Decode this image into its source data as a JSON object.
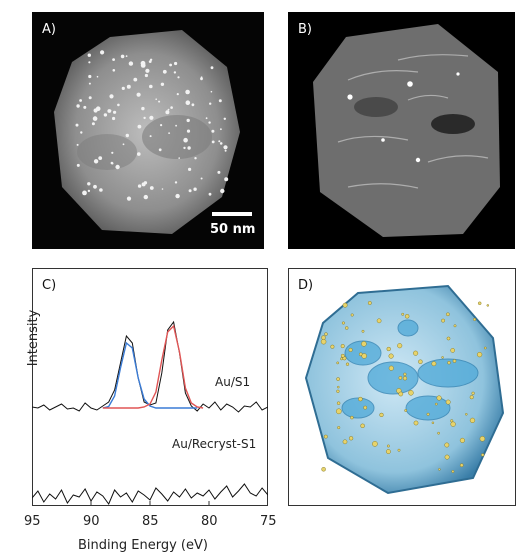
{
  "panels": {
    "a": {
      "label": "A)"
    },
    "b": {
      "label": "B)"
    },
    "c": {
      "label": "C)"
    },
    "d": {
      "label": "D)"
    }
  },
  "scale_bar": {
    "label": "50 nm"
  },
  "chart_data": {
    "type": "line",
    "xlabel": "Binding Energy (eV)",
    "ylabel": "Intensity",
    "x_reversed": true,
    "xlim": [
      95,
      75
    ],
    "xticks": [
      95,
      90,
      85,
      80,
      75
    ],
    "series": [
      {
        "name": "Au/S1",
        "color": "#111111",
        "x": [
          95,
          94.5,
          94,
          93.5,
          93,
          92.5,
          92,
          91.5,
          91,
          90.5,
          90,
          89.5,
          89,
          88.5,
          88,
          87.5,
          87,
          86.5,
          86,
          85.5,
          85,
          84.5,
          84,
          83.5,
          83,
          82.5,
          82,
          81.5,
          81,
          80.5,
          80,
          79.5,
          79,
          78.5,
          78,
          77.5,
          77,
          76.5,
          76,
          75.5,
          75
        ],
        "y": [
          0.1,
          0.0,
          0.3,
          -0.2,
          0.1,
          0.4,
          -0.1,
          0.0,
          -0.3,
          0.5,
          0.0,
          -0.2,
          0.2,
          0.6,
          1.8,
          4.5,
          7.2,
          6.5,
          3.0,
          0.6,
          0.3,
          0.5,
          3.5,
          7.8,
          8.6,
          5.5,
          1.5,
          0.2,
          -0.3,
          0.4,
          0.0,
          0.6,
          -0.2,
          0.4,
          0.1,
          -0.4,
          0.2,
          0.1,
          0.6,
          -0.2,
          0.1
        ]
      },
      {
        "name": "",
        "color": "#3a7bd5",
        "x": [
          89,
          88.5,
          88,
          87.5,
          87,
          86.5,
          86,
          85.5,
          85,
          84.5,
          84,
          83,
          82,
          81
        ],
        "y": [
          0.0,
          0.15,
          1.2,
          4.0,
          6.5,
          6.0,
          3.0,
          0.9,
          0.2,
          0.0,
          0.0,
          0.0,
          0.0,
          0.0
        ]
      },
      {
        "name": "",
        "color": "#e05555",
        "x": [
          89,
          88,
          87,
          86,
          85.5,
          85,
          84.5,
          84,
          83.5,
          83,
          82.5,
          82,
          81.5,
          81,
          80.5
        ],
        "y": [
          0.0,
          0.0,
          0.0,
          0.0,
          0.1,
          0.4,
          1.6,
          4.8,
          7.6,
          8.2,
          5.6,
          2.0,
          0.5,
          0.1,
          0.0
        ]
      },
      {
        "name": "Au/Recryst-S1",
        "color": "#111111",
        "x": [
          95,
          94.5,
          94,
          93.5,
          93,
          92.5,
          92,
          91.5,
          91,
          90.5,
          90,
          89.5,
          89,
          88.5,
          88,
          87.5,
          87,
          86.5,
          86,
          85.5,
          85,
          84.5,
          84,
          83.5,
          83,
          82.5,
          82,
          81.5,
          81,
          80.5,
          80,
          79.5,
          79,
          78.5,
          78,
          77.5,
          77,
          76.5,
          76,
          75.5,
          75
        ],
        "y": [
          -9.0,
          -8.3,
          -9.4,
          -8.6,
          -9.1,
          -8.2,
          -9.5,
          -8.7,
          -8.9,
          -8.1,
          -9.3,
          -8.4,
          -8.8,
          -9.6,
          -8.2,
          -8.9,
          -8.5,
          -9.4,
          -8.3,
          -8.7,
          -9.2,
          -8.0,
          -8.6,
          -9.3,
          -8.4,
          -8.9,
          -8.1,
          -9.0,
          -8.5,
          -8.8,
          -8.2,
          -9.1,
          -8.4,
          -7.8,
          -8.9,
          -8.3,
          -7.6,
          -8.5,
          -8.8,
          -8.0,
          -8.7
        ]
      }
    ]
  }
}
